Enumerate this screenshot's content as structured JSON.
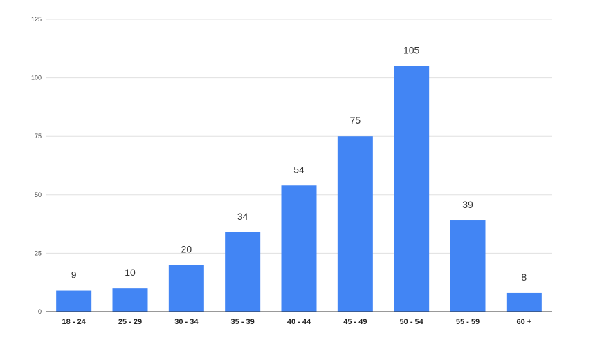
{
  "chart_data": {
    "type": "bar",
    "categories": [
      "18 - 24",
      "25 - 29",
      "30 - 34",
      "35 - 39",
      "40 - 44",
      "45 - 49",
      "50 - 54",
      "55 - 59",
      "60 +"
    ],
    "values": [
      9,
      10,
      20,
      34,
      54,
      75,
      105,
      39,
      8
    ],
    "title": "",
    "xlabel": "",
    "ylabel": "",
    "ylim": [
      0,
      125
    ],
    "yticks": [
      0,
      25,
      50,
      75,
      100,
      125
    ],
    "grid": true,
    "data_labels": true,
    "bar_color": "#4285f4"
  }
}
